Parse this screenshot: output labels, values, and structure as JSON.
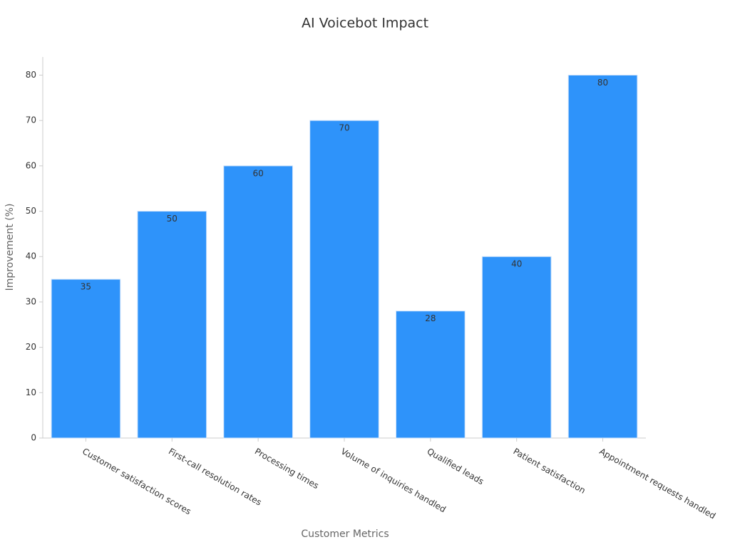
{
  "chart_data": {
    "type": "bar",
    "title": "AI Voicebot Impact",
    "x_label": "Customer Metrics",
    "y_label": "Improvement (%)",
    "categories": [
      "Customer satisfaction scores",
      "First-call resolution rates",
      "Processing times",
      "Volume of inquiries handled",
      "Qualified leads",
      "Patient satisfaction",
      "Appointment requests handled"
    ],
    "values": [
      35,
      50,
      60,
      70,
      28,
      40,
      80
    ],
    "color": "#2e93fa",
    "ylim": [
      0,
      84
    ],
    "yticks": [
      0,
      10,
      20,
      30,
      40,
      50,
      60,
      70,
      80
    ],
    "grid": false
  }
}
